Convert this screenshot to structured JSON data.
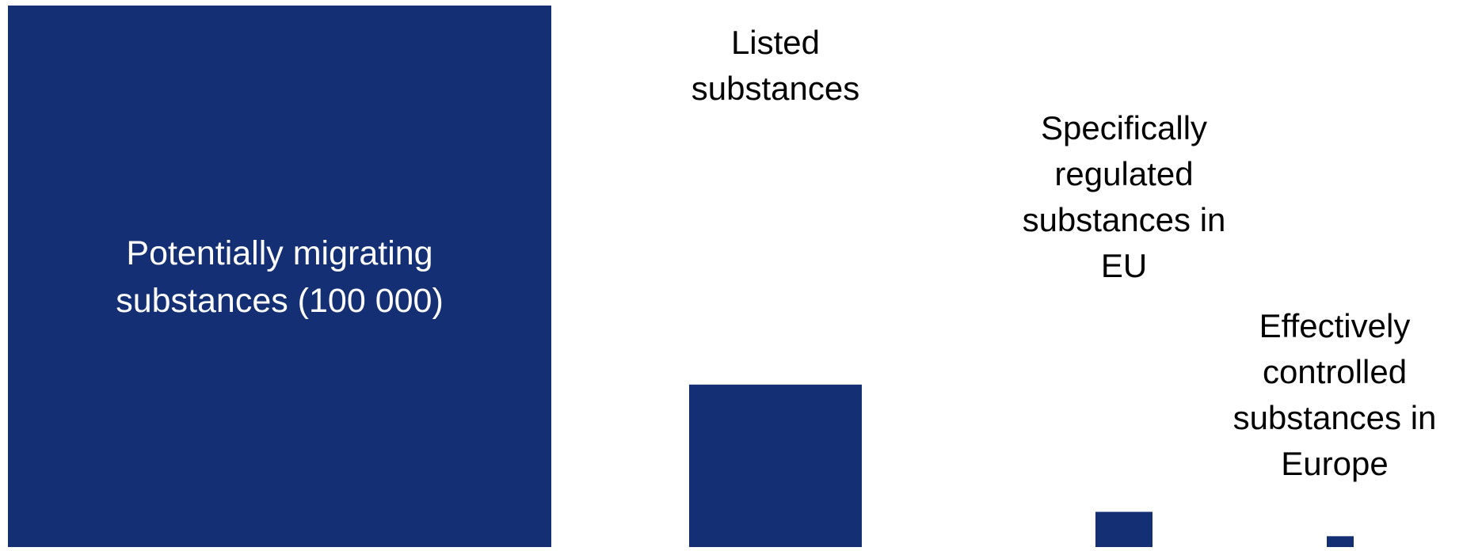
{
  "chart_data": {
    "type": "bar",
    "title": "",
    "xlabel": "",
    "ylabel": "",
    "bar_color": "#142f73",
    "categories": [
      "Potentially migrating\nsubstances (100 000)",
      "Listed\nsubstances",
      "Specifically\nregulated\nsubstances in\nEU",
      "Effectively\ncontrolled\nsubstances in\nEurope"
    ],
    "category_label_placement": [
      "inside",
      "above",
      "above",
      "above"
    ],
    "values": [
      100000,
      30000,
      6500,
      2000
    ],
    "ylim": [
      0,
      100000
    ],
    "grid": false,
    "legend": "none"
  }
}
